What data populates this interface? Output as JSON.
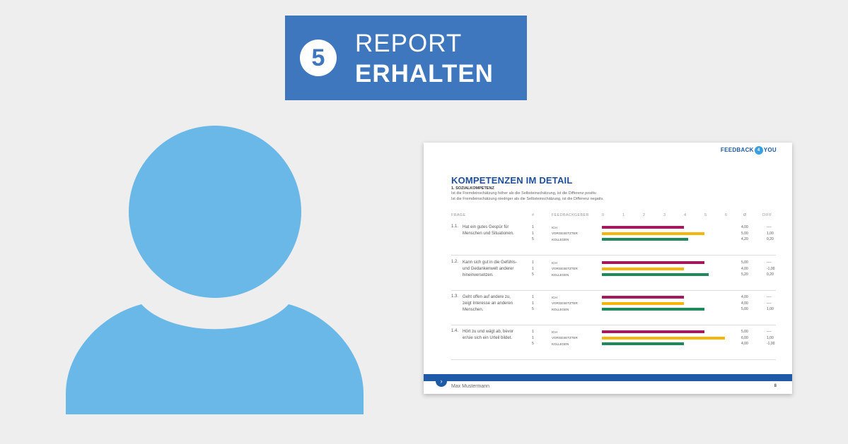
{
  "banner": {
    "step": "5",
    "line1": "REPORT",
    "line2": "ERHALTEN",
    "color": "#3f77bf"
  },
  "avatar": {
    "color": "#6ab8e8"
  },
  "report": {
    "brand_left": "FEEDBACK",
    "brand_mark": "4",
    "brand_right": "YOU",
    "title": "KOMPETENZEN IM DETAIL",
    "section": "1. SOZIALKOMPETENZ",
    "note1": "Ist die Fremdeinschätzung höher als die Selbsteinschätzung, ist die Differenz positiv.",
    "note2": "Ist die Fremdeinschätzung niedriger als die Selbsteinschätzung, ist die Differenz negativ.",
    "headers": {
      "frage": "FRAGE",
      "count": "#",
      "giver": "FEEDBACKGEBER",
      "avg": "Ø",
      "diff": "DIFF"
    },
    "scale": [
      "0",
      "1",
      "2",
      "3",
      "4",
      "5",
      "6"
    ],
    "colors": {
      "ich": "#a3195b",
      "vorgesetzter": "#f5b50a",
      "kollegen": "#1e8a5c"
    },
    "rows": [
      {
        "num": "1.1.",
        "question": "Hat ein gutes Gespür für Menschen und Situationen.",
        "entries": [
          {
            "count": "1",
            "giver": "ICH",
            "value": 4.0,
            "avg": "4,00",
            "diff": "----"
          },
          {
            "count": "1",
            "giver": "VORGESETZTER",
            "value": 5.0,
            "avg": "5,00",
            "diff": "1,00"
          },
          {
            "count": "5",
            "giver": "KOLLEGEN",
            "value": 4.2,
            "avg": "4,20",
            "diff": "0,20"
          }
        ]
      },
      {
        "num": "1.2.",
        "question": "Kann sich gut in die Gefühls- und Gedankenwelt anderer hineinversetzen.",
        "entries": [
          {
            "count": "1",
            "giver": "ICH",
            "value": 5.0,
            "avg": "5,00",
            "diff": "----"
          },
          {
            "count": "1",
            "giver": "VORGESETZTER",
            "value": 4.0,
            "avg": "4,00",
            "diff": "-1,00"
          },
          {
            "count": "5",
            "giver": "KOLLEGEN",
            "value": 5.2,
            "avg": "5,20",
            "diff": "0,20"
          }
        ]
      },
      {
        "num": "1.3.",
        "question": "Geht offen auf andere zu, zeigt Interesse an anderen Menschen.",
        "entries": [
          {
            "count": "1",
            "giver": "ICH",
            "value": 4.0,
            "avg": "4,00",
            "diff": "----"
          },
          {
            "count": "1",
            "giver": "VORGESETZTER",
            "value": 4.0,
            "avg": "4,00",
            "diff": "----"
          },
          {
            "count": "5",
            "giver": "KOLLEGEN",
            "value": 5.0,
            "avg": "5,00",
            "diff": "1,00"
          }
        ]
      },
      {
        "num": "1.4.",
        "question": "Hört zu und wägt ab, bevor er/sie sich ein Urteil bildet.",
        "entries": [
          {
            "count": "1",
            "giver": "ICH",
            "value": 5.0,
            "avg": "5,00",
            "diff": "----"
          },
          {
            "count": "1",
            "giver": "VORGESETZTER",
            "value": 6.0,
            "avg": "6,00",
            "diff": "1,00"
          },
          {
            "count": "5",
            "giver": "KOLLEGEN",
            "value": 4.0,
            "avg": "4,00",
            "diff": "-1,00"
          }
        ]
      }
    ],
    "footer_name": "Max Mustermann",
    "page_number": "8"
  }
}
